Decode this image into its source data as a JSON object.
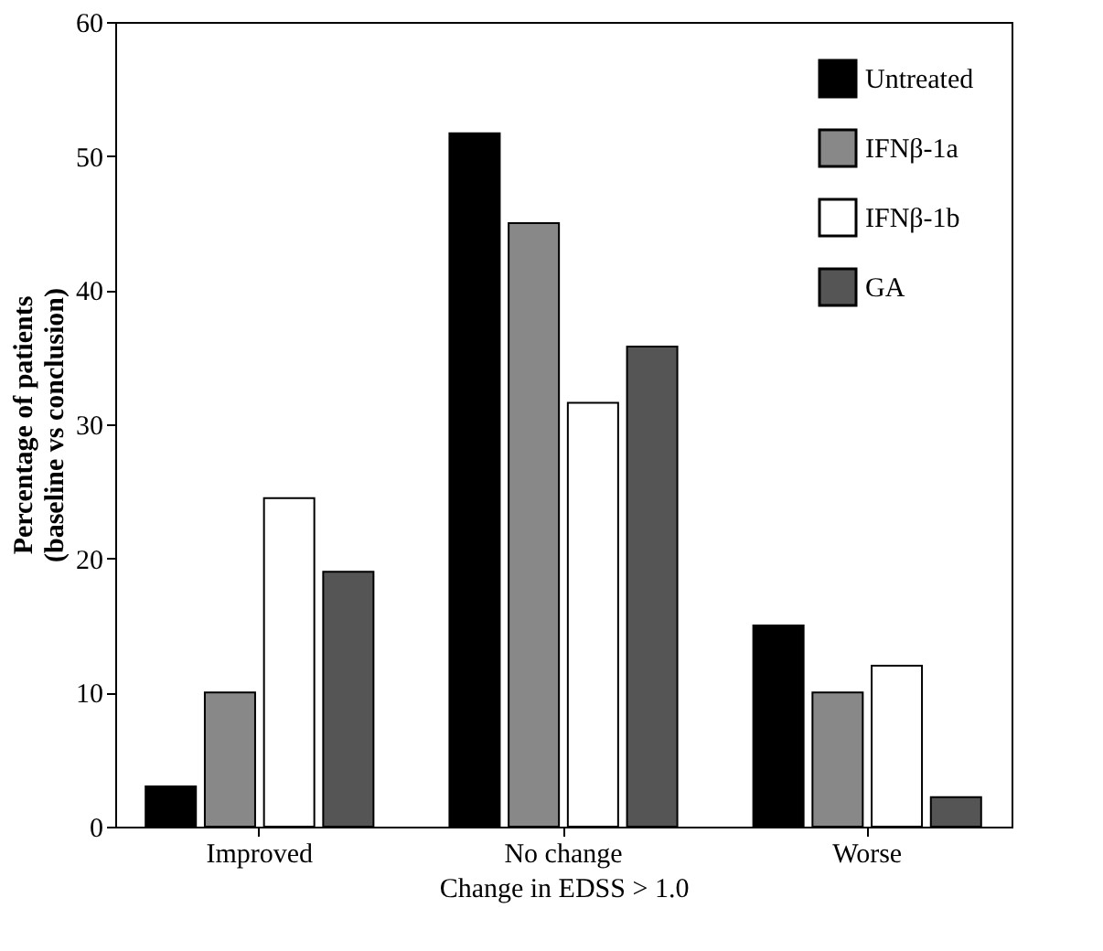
{
  "chart_data": {
    "type": "bar",
    "xlabel": "Change in EDSS > 1.0",
    "ylabel": "Percentage of patients\n(baseline vs conclusion)",
    "categories": [
      "Improved",
      "No change",
      "Worse"
    ],
    "series": [
      {
        "name": "Untreated",
        "color": "#000000",
        "values": [
          3,
          51.7,
          15
        ]
      },
      {
        "name": "IFNβ-1a",
        "color": "#888888",
        "values": [
          10,
          45,
          10
        ]
      },
      {
        "name": "IFNβ-1b",
        "color": "#ffffff",
        "values": [
          24.5,
          31.6,
          12
        ]
      },
      {
        "name": "GA",
        "color": "#555555",
        "values": [
          19,
          35.8,
          2.2
        ]
      }
    ],
    "ylim": [
      0,
      60
    ],
    "yticks": [
      0,
      10,
      20,
      30,
      40,
      50,
      60
    ],
    "grid": false,
    "legend": "top right"
  }
}
